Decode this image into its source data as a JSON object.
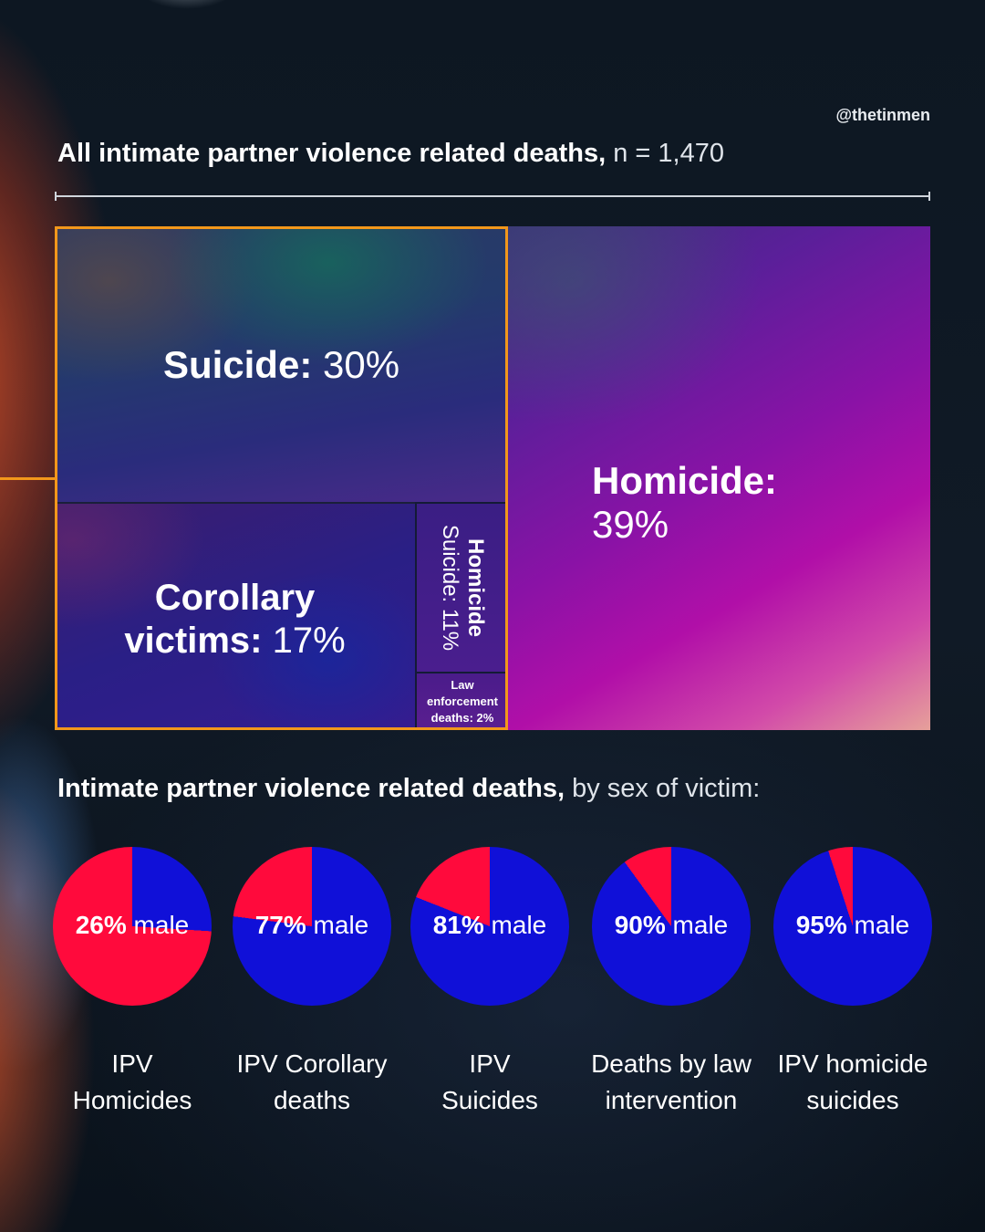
{
  "handle": "@thetinmen",
  "headline": {
    "bold": "All intimate partner violence related deaths,",
    "light": "n = 1,470"
  },
  "subhead": {
    "bold": "Intimate partner violence related deaths,",
    "light": "by sex of victim:"
  },
  "colors": {
    "male": "#1010d8",
    "female": "#ff0a3c",
    "highlight": "#f2971b"
  },
  "chart_data": [
    {
      "type": "treemap",
      "title": "All intimate partner violence related deaths, n = 1,470",
      "items": [
        {
          "name": "Homicide",
          "value": 39,
          "name_label": "Homicide:",
          "value_label": "39%"
        },
        {
          "name": "Suicide",
          "value": 30,
          "name_label": "Suicide:",
          "value_label": "30%"
        },
        {
          "name": "Corollary victims",
          "value": 17,
          "name_label1": "Corollary",
          "name_label2": "victims:",
          "value_label": "17%"
        },
        {
          "name": "Homicide Suicide",
          "value": 11,
          "name_label": "Homicide",
          "value_label": "Suicide: 11%"
        },
        {
          "name": "Law enforcement deaths",
          "value": 2,
          "name_label1": "Law",
          "name_label2": "enforcement",
          "value_label": "deaths: 2%"
        }
      ]
    },
    {
      "type": "pie",
      "title": "Intimate partner violence related deaths, by sex of victim:",
      "series": [
        {
          "category": "IPV Homicides",
          "caption_lines": [
            "IPV",
            "Homicides"
          ],
          "male_pct": 26,
          "value_label": "26%",
          "suffix": "male"
        },
        {
          "category": "IPV Corollary deaths",
          "caption_lines": [
            "IPV Corollary",
            "deaths"
          ],
          "male_pct": 77,
          "value_label": "77%",
          "suffix": "male"
        },
        {
          "category": "IPV Suicides",
          "caption_lines": [
            "IPV",
            "Suicides"
          ],
          "male_pct": 81,
          "value_label": "81%",
          "suffix": "male"
        },
        {
          "category": "Deaths by law intervention",
          "caption_lines": [
            "Deaths by law",
            "intervention"
          ],
          "male_pct": 90,
          "value_label": "90%",
          "suffix": "male"
        },
        {
          "category": "IPV homicide suicides",
          "caption_lines": [
            "IPV homicide",
            "suicides"
          ],
          "male_pct": 95,
          "value_label": "95%",
          "suffix": "male"
        }
      ]
    }
  ]
}
